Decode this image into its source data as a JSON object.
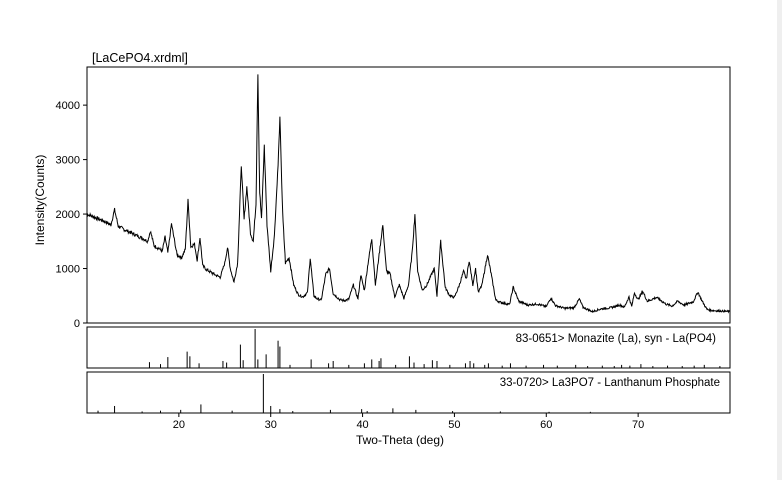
{
  "chart_data": {
    "type": "line",
    "title": "[LaCePO4.xrdml]",
    "xlabel": "Two-Theta (deg)",
    "ylabel": "Intensity(Counts)",
    "xlim": [
      10,
      80
    ],
    "ylim": [
      0,
      4700
    ],
    "x_ticks": [
      20,
      30,
      40,
      50,
      60,
      70
    ],
    "y_ticks": [
      0,
      1000,
      2000,
      3000,
      4000
    ],
    "grid": false,
    "series": [
      {
        "x": [
          10,
          11,
          12,
          12.6,
          13,
          13.4,
          14,
          15,
          16,
          16.6,
          16.9,
          17.3,
          17.8,
          18.2,
          18.5,
          18.8,
          19.2,
          19.8,
          20.3,
          20.7,
          21.0,
          21.3,
          21.7,
          22.0,
          22.3,
          22.6,
          23,
          23.5,
          24,
          24.5,
          25.0,
          25.3,
          25.6,
          26,
          26.4,
          26.8,
          27.1,
          27.4,
          27.8,
          28.1,
          28.4,
          28.6,
          28.8,
          29.0,
          29.3,
          29.6,
          30.0,
          30.4,
          30.8,
          31.0,
          31.3,
          31.6,
          32.0,
          32.5,
          33,
          33.5,
          34.0,
          34.3,
          34.7,
          35,
          35.5,
          36.0,
          36.4,
          36.8,
          37.5,
          38,
          38.5,
          39,
          39.5,
          39.8,
          40.2,
          40.6,
          41.0,
          41.4,
          41.8,
          42.2,
          42.6,
          43,
          43.5,
          44,
          44.5,
          45,
          45.4,
          45.7,
          46.0,
          46.5,
          47.0,
          47.4,
          47.8,
          48.1,
          48.5,
          49,
          49.5,
          50,
          50.5,
          51,
          51.3,
          51.6,
          52.0,
          52.3,
          52.6,
          53,
          53.6,
          54,
          54.5,
          55,
          55.5,
          56.0,
          56.4,
          57,
          58,
          59,
          60.0,
          60.5,
          61,
          62,
          63.0,
          63.6,
          64,
          65,
          66,
          67,
          68.0,
          68.5,
          69.0,
          69.3,
          69.6,
          70.0,
          70.5,
          71,
          72,
          73,
          73.7,
          74.3,
          75,
          76,
          76.5,
          77,
          77.5,
          78,
          79,
          80
        ],
        "y": [
          2000,
          1930,
          1860,
          1800,
          2080,
          1780,
          1720,
          1640,
          1560,
          1500,
          1690,
          1420,
          1370,
          1320,
          1580,
          1290,
          1820,
          1250,
          1200,
          1350,
          2250,
          1400,
          1450,
          1150,
          1570,
          1050,
          980,
          930,
          880,
          840,
          1100,
          1390,
          1000,
          750,
          1100,
          2900,
          1900,
          2500,
          1650,
          1500,
          2200,
          4600,
          2400,
          1900,
          3250,
          1800,
          950,
          1600,
          2900,
          3750,
          2000,
          1100,
          1200,
          700,
          520,
          480,
          560,
          1200,
          500,
          450,
          420,
          900,
          1000,
          540,
          430,
          410,
          440,
          700,
          440,
          880,
          600,
          1100,
          1550,
          700,
          1250,
          1800,
          950,
          900,
          480,
          700,
          450,
          700,
          1300,
          2000,
          950,
          600,
          700,
          850,
          1000,
          500,
          1500,
          650,
          500,
          470,
          680,
          950,
          800,
          1150,
          700,
          1000,
          560,
          700,
          1250,
          900,
          420,
          380,
          360,
          340,
          660,
          400,
          330,
          350,
          300,
          460,
          320,
          270,
          280,
          440,
          290,
          210,
          260,
          280,
          330,
          290,
          480,
          300,
          550,
          430,
          580,
          400,
          470,
          350,
          310,
          400,
          330,
          390,
          570,
          390,
          250,
          230,
          220,
          210
        ]
      }
    ],
    "reference_patterns": [
      {
        "name": "83-0651> Monazite (La), syn - La(PO4)",
        "x": [
          16.8,
          18.0,
          18.8,
          20.9,
          21.2,
          22.2,
          24.8,
          25.2,
          26.7,
          27.0,
          28.3,
          28.6,
          29.5,
          30.8,
          31.0,
          32.1,
          34.4,
          36.3,
          36.8,
          38.5,
          40.2,
          41.0,
          41.8,
          42.0,
          43.6,
          45.1,
          45.6,
          46.7,
          47.6,
          48.1,
          49.5,
          51.2,
          51.7,
          52.1,
          53.3,
          53.7,
          55.2,
          56.1,
          57.8,
          59.7,
          61.2,
          63.2,
          64.5,
          66.1,
          67.4,
          68.2,
          69.1,
          70.3,
          71.6,
          73.2,
          74.8,
          76.1,
          77.2,
          78.9
        ],
        "y": [
          15,
          10,
          28,
          42,
          30,
          12,
          18,
          14,
          60,
          20,
          100,
          22,
          35,
          70,
          55,
          8,
          22,
          12,
          18,
          8,
          12,
          22,
          18,
          25,
          8,
          30,
          14,
          10,
          20,
          18,
          8,
          12,
          18,
          12,
          8,
          12,
          6,
          12,
          6,
          8,
          6,
          8,
          5,
          6,
          5,
          8,
          6,
          10,
          5,
          6,
          5,
          6,
          8,
          5
        ]
      },
      {
        "name": "33-0720> La3PO7 - Lanthanum Phosphate",
        "x": [
          11.2,
          13.0,
          16.0,
          18.0,
          20.2,
          22.4,
          25.8,
          29.2,
          30.0,
          31.0,
          32.4,
          36.5,
          39.9,
          40.5,
          43.3,
          45.8,
          49.8,
          55.0,
          60.3,
          64.8
        ],
        "y": [
          6,
          18,
          4,
          6,
          8,
          22,
          6,
          100,
          18,
          10,
          5,
          8,
          10,
          5,
          12,
          8,
          5,
          4,
          3,
          3
        ]
      }
    ]
  }
}
